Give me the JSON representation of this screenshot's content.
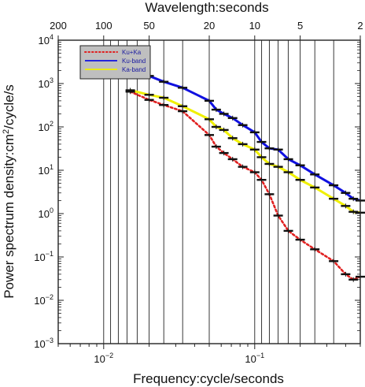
{
  "chart_data": {
    "type": "line",
    "top_axis_label": "Wavelength:seconds",
    "xlabel": "Frequency:cycle/seconds",
    "ylabel": "Power spectrum density:cm²/cycle/s",
    "xscale": "log",
    "yscale": "log",
    "xlim": [
      0.005,
      0.5
    ],
    "ylim": [
      0.001,
      10000
    ],
    "grid": "vertical",
    "legend_position": "top-left",
    "y_tick_values": [
      0.001,
      0.01,
      0.1,
      1,
      10,
      100,
      1000,
      10000
    ],
    "y_ticks": [
      {
        "base": "10",
        "exp": "−3"
      },
      {
        "base": "10",
        "exp": "−2"
      },
      {
        "base": "10",
        "exp": "−1"
      },
      {
        "base": "10",
        "exp": "0"
      },
      {
        "base": "10",
        "exp": "1"
      },
      {
        "base": "10",
        "exp": "2"
      },
      {
        "base": "10",
        "exp": "3"
      },
      {
        "base": "10",
        "exp": "4"
      }
    ],
    "x_ticks": [
      {
        "value": 0.01,
        "base": "10",
        "exp": "−2"
      },
      {
        "value": 0.1,
        "base": "10",
        "exp": "−1"
      }
    ],
    "top_ticks": [
      {
        "period": 200,
        "label": "200"
      },
      {
        "period": 100,
        "label": "100"
      },
      {
        "period": 50,
        "label": "50"
      },
      {
        "period": 20,
        "label": "20"
      },
      {
        "period": 10,
        "label": "10"
      },
      {
        "period": 5,
        "label": "5"
      },
      {
        "period": 2,
        "label": "2"
      }
    ],
    "grid_periods": [
      100,
      90,
      80,
      70,
      60,
      50,
      40,
      30,
      20,
      10,
      9,
      8,
      7,
      6,
      5,
      4,
      3,
      2
    ],
    "series": [
      {
        "name": "Ku+Ka",
        "color": "#e02020",
        "style": "dotted",
        "x": [
          0.015,
          0.02,
          0.025,
          0.0333,
          0.05,
          0.0556,
          0.0625,
          0.0714,
          0.0833,
          0.1,
          0.111,
          0.125,
          0.143,
          0.167,
          0.2,
          0.25,
          0.333,
          0.4,
          0.45,
          0.5
        ],
        "y": [
          650,
          420,
          320,
          230,
          65,
          35,
          25,
          18,
          12,
          9,
          6,
          2.8,
          0.9,
          0.4,
          0.25,
          0.15,
          0.08,
          0.04,
          0.03,
          0.035
        ]
      },
      {
        "name": "Ku-band",
        "color": "#1010e0",
        "style": "solid",
        "x": [
          0.015,
          0.02,
          0.025,
          0.0333,
          0.05,
          0.0556,
          0.0625,
          0.0714,
          0.0833,
          0.1,
          0.111,
          0.125,
          0.143,
          0.167,
          0.2,
          0.25,
          0.333,
          0.4,
          0.45,
          0.5
        ],
        "y": [
          2000,
          1500,
          1100,
          800,
          400,
          250,
          200,
          160,
          110,
          75,
          45,
          32,
          30,
          18,
          13,
          8,
          4.5,
          3,
          2.2,
          2
        ]
      },
      {
        "name": "Ka-band",
        "color": "#f0f000",
        "style": "solid",
        "x": [
          0.015,
          0.02,
          0.025,
          0.0333,
          0.05,
          0.0556,
          0.0625,
          0.0714,
          0.0833,
          0.1,
          0.111,
          0.125,
          0.143,
          0.167,
          0.2,
          0.25,
          0.333,
          0.4,
          0.45,
          0.5
        ],
        "y": [
          700,
          550,
          470,
          300,
          150,
          100,
          85,
          55,
          40,
          30,
          20,
          14,
          12,
          9,
          6,
          4,
          2.2,
          1.5,
          1.1,
          1.05
        ]
      }
    ]
  }
}
